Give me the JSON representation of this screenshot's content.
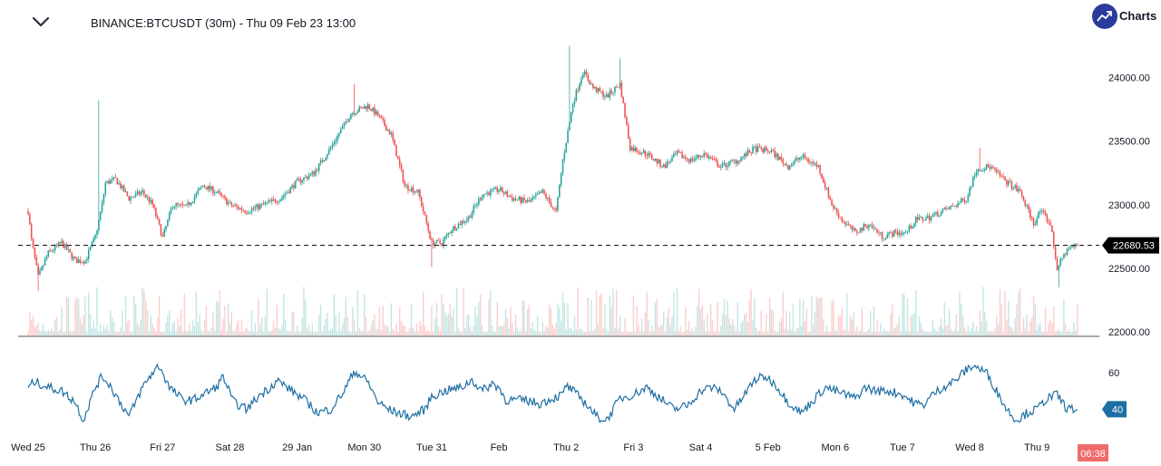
{
  "header": {
    "title": "BINANCE:BTCUSDT (30m) - Thu 09 Feb 23 13:00",
    "logo_text": "Charts"
  },
  "colors": {
    "up": "#26a69a",
    "down": "#ef5350",
    "rsi": "#1e6fa3",
    "price_tag_bg": "#000000",
    "rsi_tag_bg": "#1e6fa3",
    "time_tag_bg": "#ef6b6b",
    "logo_bg": "#2a3b9c"
  },
  "chart_data": [
    {
      "type": "candlestick",
      "title": "",
      "symbol": "BINANCE:BTCUSDT",
      "interval": "30m",
      "xlabel": "",
      "ylabel": "",
      "ylim": [
        22000,
        24200
      ],
      "y_ticks": [
        "24000.00",
        "23500.00",
        "23000.00",
        "22500.00",
        "22000.00"
      ],
      "x_ticks": [
        "Wed 25",
        "Thu 26",
        "Fri 27",
        "Sat 28",
        "29 Jan",
        "Mon 30",
        "Tue 31",
        "Feb",
        "Thu 2",
        "Fri 3",
        "Sat 4",
        "5 Feb",
        "Mon 6",
        "Tue 7",
        "Wed 8",
        "Thu 9"
      ],
      "last_price": 22680.53,
      "last_price_label": "22680.53",
      "grid": false,
      "legend": "none",
      "close_path": [
        [
          0.0,
          22950
        ],
        [
          0.05,
          22720
        ],
        [
          0.15,
          22430
        ],
        [
          0.3,
          22620
        ],
        [
          0.5,
          22700
        ],
        [
          0.7,
          22560
        ],
        [
          0.85,
          22560
        ],
        [
          1.0,
          22750
        ],
        [
          1.1,
          23000
        ],
        [
          1.15,
          23170
        ],
        [
          1.3,
          23200
        ],
        [
          1.5,
          23050
        ],
        [
          1.7,
          23100
        ],
        [
          1.85,
          23000
        ],
        [
          2.0,
          22740
        ],
        [
          2.15,
          23000
        ],
        [
          2.35,
          22980
        ],
        [
          2.6,
          23150
        ],
        [
          2.8,
          23100
        ],
        [
          3.0,
          23000
        ],
        [
          3.25,
          22950
        ],
        [
          3.5,
          23000
        ],
        [
          3.75,
          23050
        ],
        [
          4.0,
          23180
        ],
        [
          4.25,
          23250
        ],
        [
          4.5,
          23450
        ],
        [
          4.8,
          23720
        ],
        [
          5.05,
          23780
        ],
        [
          5.2,
          23700
        ],
        [
          5.4,
          23550
        ],
        [
          5.6,
          23150
        ],
        [
          5.8,
          23100
        ],
        [
          6.0,
          22700
        ],
        [
          6.15,
          22700
        ],
        [
          6.3,
          22810
        ],
        [
          6.55,
          22900
        ],
        [
          6.75,
          23080
        ],
        [
          7.0,
          23120
        ],
        [
          7.2,
          23050
        ],
        [
          7.45,
          23020
        ],
        [
          7.65,
          23100
        ],
        [
          7.85,
          22940
        ],
        [
          7.95,
          23350
        ],
        [
          8.1,
          23800
        ],
        [
          8.25,
          24050
        ],
        [
          8.4,
          23920
        ],
        [
          8.6,
          23850
        ],
        [
          8.8,
          23950
        ],
        [
          8.95,
          23450
        ],
        [
          9.2,
          23400
        ],
        [
          9.45,
          23300
        ],
        [
          9.65,
          23400
        ],
        [
          9.85,
          23350
        ],
        [
          10.05,
          23400
        ],
        [
          10.3,
          23300
        ],
        [
          10.55,
          23350
        ],
        [
          10.8,
          23440
        ],
        [
          11.05,
          23420
        ],
        [
          11.3,
          23300
        ],
        [
          11.5,
          23380
        ],
        [
          11.75,
          23300
        ],
        [
          11.95,
          23000
        ],
        [
          12.1,
          22880
        ],
        [
          12.3,
          22780
        ],
        [
          12.5,
          22850
        ],
        [
          12.7,
          22750
        ],
        [
          12.9,
          22780
        ],
        [
          13.05,
          22780
        ],
        [
          13.2,
          22880
        ],
        [
          13.4,
          22900
        ],
        [
          13.6,
          22950
        ],
        [
          13.8,
          23000
        ],
        [
          13.95,
          23050
        ],
        [
          14.1,
          23280
        ],
        [
          14.3,
          23300
        ],
        [
          14.5,
          23200
        ],
        [
          14.75,
          23100
        ],
        [
          14.95,
          22850
        ],
        [
          15.05,
          22950
        ],
        [
          15.2,
          22850
        ],
        [
          15.3,
          22500
        ],
        [
          15.45,
          22650
        ],
        [
          15.6,
          22680
        ]
      ],
      "anchor_points": [
        {
          "x": 1.05,
          "high": 23820
        },
        {
          "x": 4.85,
          "high": 23950
        },
        {
          "x": 8.05,
          "high": 24250
        },
        {
          "x": 8.8,
          "high": 24150
        },
        {
          "x": 14.15,
          "high": 23450
        },
        {
          "x": 0.15,
          "low": 22320
        },
        {
          "x": 6.0,
          "low": 22510
        },
        {
          "x": 15.32,
          "low": 22350
        }
      ]
    },
    {
      "type": "line",
      "title": "",
      "name": "",
      "ylim": [
        30,
        70
      ],
      "y_ticks": [
        "60"
      ],
      "last_value": 40,
      "last_value_label": "40",
      "path": [
        [
          0.0,
          52
        ],
        [
          0.1,
          55
        ],
        [
          0.3,
          52
        ],
        [
          0.5,
          50
        ],
        [
          0.7,
          44
        ],
        [
          0.82,
          34
        ],
        [
          1.0,
          52
        ],
        [
          1.1,
          58
        ],
        [
          1.2,
          54
        ],
        [
          1.4,
          42
        ],
        [
          1.5,
          36
        ],
        [
          1.7,
          52
        ],
        [
          1.85,
          60
        ],
        [
          1.95,
          64
        ],
        [
          2.1,
          52
        ],
        [
          2.3,
          45
        ],
        [
          2.45,
          45
        ],
        [
          2.6,
          48
        ],
        [
          2.8,
          52
        ],
        [
          2.9,
          58
        ],
        [
          3.05,
          44
        ],
        [
          3.25,
          40
        ],
        [
          3.45,
          48
        ],
        [
          3.6,
          52
        ],
        [
          3.7,
          56
        ],
        [
          3.85,
          52
        ],
        [
          4.0,
          48
        ],
        [
          4.15,
          44
        ],
        [
          4.3,
          38
        ],
        [
          4.5,
          40
        ],
        [
          4.7,
          50
        ],
        [
          4.85,
          61
        ],
        [
          5.05,
          55
        ],
        [
          5.2,
          44
        ],
        [
          5.35,
          40
        ],
        [
          5.5,
          38
        ],
        [
          5.7,
          36
        ],
        [
          5.9,
          40
        ],
        [
          6.0,
          47
        ],
        [
          6.2,
          50
        ],
        [
          6.45,
          52
        ],
        [
          6.6,
          56
        ],
        [
          6.75,
          50
        ],
        [
          6.9,
          54
        ],
        [
          7.0,
          52
        ],
        [
          7.1,
          45
        ],
        [
          7.4,
          45
        ],
        [
          7.6,
          43
        ],
        [
          7.8,
          46
        ],
        [
          7.95,
          48
        ],
        [
          8.0,
          53
        ],
        [
          8.1,
          50
        ],
        [
          8.3,
          43
        ],
        [
          8.45,
          36
        ],
        [
          8.6,
          34
        ],
        [
          8.8,
          46
        ],
        [
          9.0,
          48
        ],
        [
          9.2,
          52
        ],
        [
          9.4,
          46
        ],
        [
          9.6,
          40
        ],
        [
          9.8,
          42
        ],
        [
          10.0,
          50
        ],
        [
          10.15,
          52
        ],
        [
          10.3,
          50
        ],
        [
          10.5,
          40
        ],
        [
          10.6,
          45
        ],
        [
          10.8,
          56
        ],
        [
          10.95,
          58
        ],
        [
          11.1,
          54
        ],
        [
          11.3,
          44
        ],
        [
          11.5,
          38
        ],
        [
          11.7,
          46
        ],
        [
          11.85,
          52
        ],
        [
          12.0,
          50
        ],
        [
          12.15,
          48
        ],
        [
          12.3,
          46
        ],
        [
          12.45,
          52
        ],
        [
          12.6,
          50
        ],
        [
          12.8,
          50
        ],
        [
          13.0,
          48
        ],
        [
          13.15,
          44
        ],
        [
          13.3,
          42
        ],
        [
          13.45,
          48
        ],
        [
          13.6,
          52
        ],
        [
          13.8,
          56
        ],
        [
          13.9,
          60
        ],
        [
          14.05,
          64
        ],
        [
          14.25,
          60
        ],
        [
          14.4,
          50
        ],
        [
          14.55,
          40
        ],
        [
          14.7,
          34
        ],
        [
          14.85,
          38
        ],
        [
          15.0,
          40
        ],
        [
          15.15,
          46
        ],
        [
          15.3,
          48
        ],
        [
          15.45,
          40
        ],
        [
          15.6,
          40
        ]
      ]
    }
  ],
  "footer": {
    "time_tag": "06:38"
  }
}
